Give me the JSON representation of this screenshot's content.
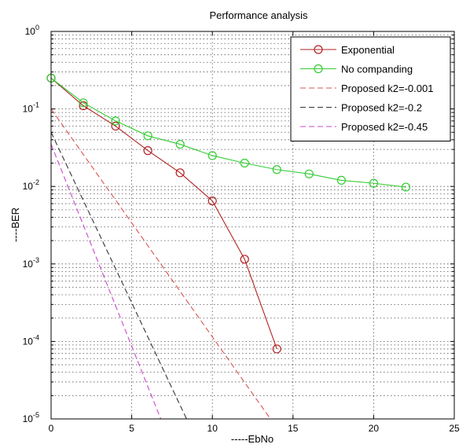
{
  "chart_data": {
    "type": "line",
    "title": "Performance analysis",
    "xlabel": "-----EbNo",
    "ylabel": "----BER",
    "xlim": [
      0,
      25
    ],
    "ylim": [
      1e-05,
      1
    ],
    "yscale": "log",
    "grid": true,
    "legend_position": "top-right",
    "x_ticks": [
      "0",
      "5",
      "10",
      "15",
      "20",
      "25"
    ],
    "y_ticks": [
      {
        "base": "10",
        "exp": "-5",
        "value": 1e-05
      },
      {
        "base": "10",
        "exp": "-4",
        "value": 0.0001
      },
      {
        "base": "10",
        "exp": "-3",
        "value": 0.001
      },
      {
        "base": "10",
        "exp": "-2",
        "value": 0.01
      },
      {
        "base": "10",
        "exp": "-1",
        "value": 0.1
      },
      {
        "base": "10",
        "exp": "0",
        "value": 1
      }
    ],
    "series": [
      {
        "name": "Exponential",
        "color": "#b22222",
        "style": "solid",
        "marker": "circle",
        "x": [
          0,
          2,
          4,
          6,
          8,
          10,
          12,
          14
        ],
        "y": [
          0.25,
          0.11,
          0.06,
          0.029,
          0.015,
          0.0065,
          0.00115,
          8e-05
        ]
      },
      {
        "name": "No companding",
        "color": "#33cc33",
        "style": "solid",
        "marker": "circle",
        "x": [
          0,
          2,
          4,
          6,
          8,
          10,
          12,
          14,
          16,
          18,
          20,
          22
        ],
        "y": [
          0.25,
          0.12,
          0.07,
          0.045,
          0.035,
          0.025,
          0.02,
          0.0165,
          0.0145,
          0.012,
          0.011,
          0.0098
        ]
      },
      {
        "name": "Proposed k2=-0.001",
        "color": "#d9534f",
        "style": "dashed",
        "marker": "none",
        "x": [
          0,
          13.6
        ],
        "y": [
          0.1,
          1e-05
        ]
      },
      {
        "name": "Proposed k2=-0.2",
        "color": "#333333",
        "style": "dashed",
        "marker": "none",
        "x": [
          0,
          8.4
        ],
        "y": [
          0.05,
          1e-05
        ]
      },
      {
        "name": "Proposed k2=-0.45",
        "color": "#cc44cc",
        "style": "dashed",
        "marker": "none",
        "x": [
          0,
          6.8
        ],
        "y": [
          0.035,
          1e-05
        ]
      }
    ]
  }
}
